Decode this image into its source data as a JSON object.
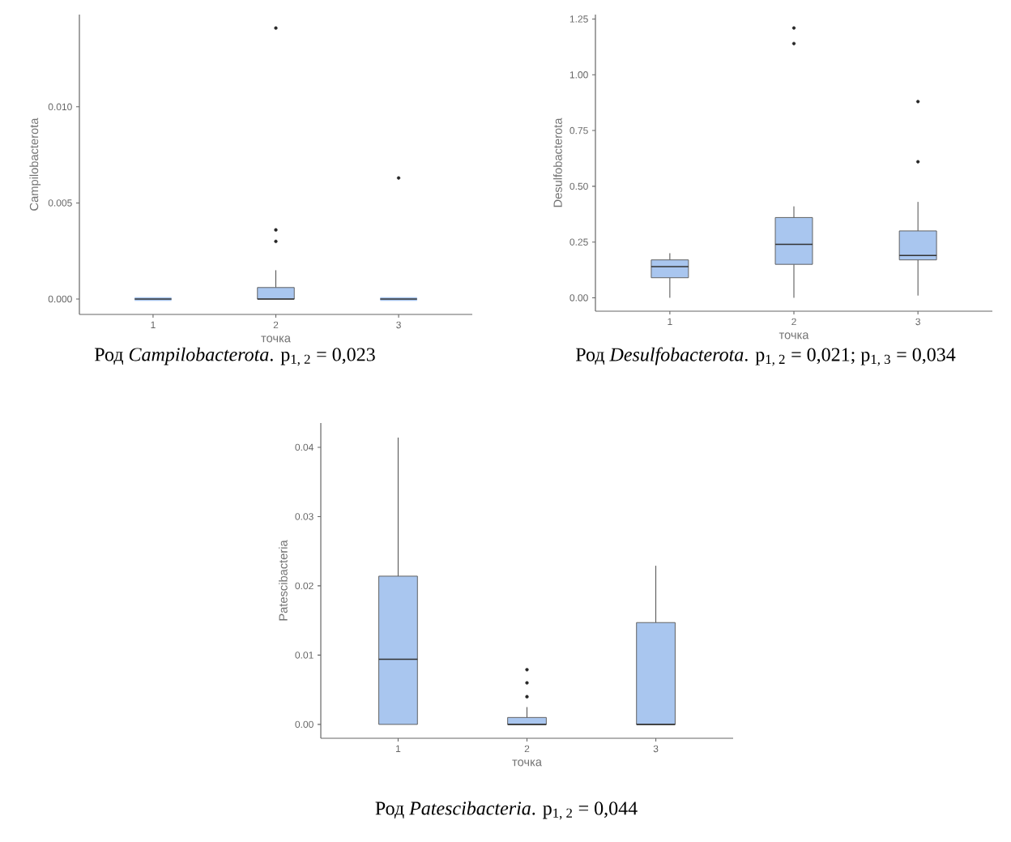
{
  "chart_data": [
    {
      "type": "box",
      "categories": [
        "1",
        "2",
        "3"
      ],
      "xlabel": "точка",
      "ylabel": "Campilobacterota",
      "ylim": [
        -0.0008,
        0.0148
      ],
      "yticks": [
        {
          "value": 0,
          "label": "0.000"
        },
        {
          "value": 0.005,
          "label": "0.005"
        },
        {
          "value": 0.01,
          "label": "0.010"
        }
      ],
      "series": [
        {
          "color": "#a9c6ef",
          "boxes": [
            {
              "low": 0,
              "q1": 0,
              "median": 0,
              "q3": 0,
              "high": 0
            },
            {
              "low": 0,
              "q1": 0,
              "median": 0,
              "q3": 0.0006,
              "high": 0.0015,
              "outliers": [
                0.003,
                0.0036,
                0.0141
              ]
            },
            {
              "low": 0,
              "q1": 0,
              "median": 0,
              "q3": 0,
              "high": 0,
              "outliers": [
                0.0063
              ]
            }
          ]
        }
      ],
      "annotations": [
        "Род *Campilobacterota*. p$_{1, 2}$ = 0,023"
      ]
    },
    {
      "type": "box",
      "categories": [
        "1",
        "2",
        "3"
      ],
      "xlabel": "точка",
      "ylabel": "Desulfobacterota",
      "ylim": [
        -0.06,
        1.27
      ],
      "yticks": [
        {
          "value": 0,
          "label": "0.00"
        },
        {
          "value": 0.25,
          "label": "0.25"
        },
        {
          "value": 0.5,
          "label": "0.50"
        },
        {
          "value": 0.75,
          "label": "0.75"
        },
        {
          "value": 1,
          "label": "1.00"
        },
        {
          "value": 1.25,
          "label": "1.25"
        }
      ],
      "series": [
        {
          "color": "#a9c6ef",
          "boxes": [
            {
              "low": 0,
              "q1": 0.09,
              "median": 0.14,
              "q3": 0.17,
              "high": 0.2
            },
            {
              "low": 0,
              "q1": 0.15,
              "median": 0.24,
              "q3": 0.36,
              "high": 0.41,
              "outliers": [
                1.14,
                1.21
              ]
            },
            {
              "low": 0.01,
              "q1": 0.17,
              "median": 0.19,
              "q3": 0.3,
              "high": 0.43,
              "outliers": [
                0.61,
                0.88
              ]
            }
          ]
        }
      ],
      "annotations": [
        "Род *Desulfobacterota*. p$_{1, 2}$ = 0,021; p$_{1, 3}$ = 0,034"
      ]
    },
    {
      "type": "box",
      "categories": [
        "1",
        "2",
        "3"
      ],
      "xlabel": "точка",
      "ylabel": "Patescibacteria",
      "ylim": [
        -0.002,
        0.0435
      ],
      "yticks": [
        {
          "value": 0,
          "label": "0.00"
        },
        {
          "value": 0.01,
          "label": "0.01"
        },
        {
          "value": 0.02,
          "label": "0.02"
        },
        {
          "value": 0.03,
          "label": "0.03"
        },
        {
          "value": 0.04,
          "label": "0.04"
        }
      ],
      "series": [
        {
          "color": "#a9c6ef",
          "boxes": [
            {
              "low": 0,
              "q1": 0,
              "median": 0.0094,
              "q3": 0.0214,
              "high": 0.0414
            },
            {
              "low": 0,
              "q1": 0,
              "median": 0,
              "q3": 0.001,
              "high": 0.0025,
              "outliers": [
                0.004,
                0.006,
                0.0079
              ]
            },
            {
              "low": 0,
              "q1": 0,
              "median": 0,
              "q3": 0.0147,
              "high": 0.0229
            }
          ]
        }
      ],
      "annotations": [
        "Род *Patescibacteria*. p$_{1, 2}$ = 0,044"
      ]
    }
  ]
}
